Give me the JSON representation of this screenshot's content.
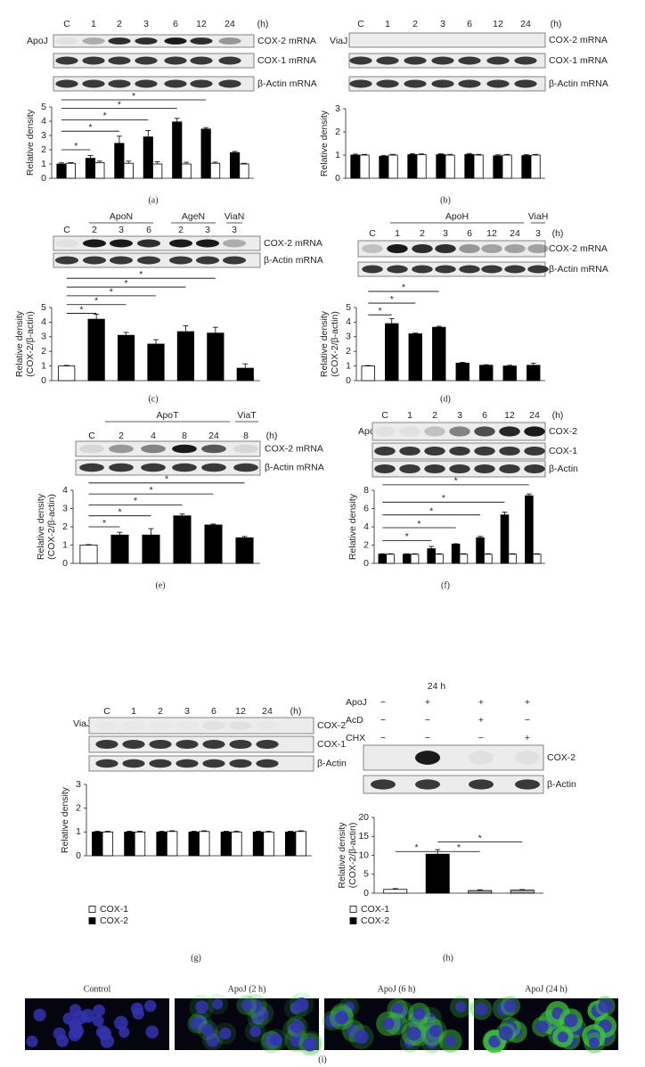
{
  "chart_data": [
    {
      "type": "bar",
      "panel": "(a)",
      "gel_label": "ApoJ",
      "lanes": [
        "C",
        "1",
        "2",
        "3",
        "6",
        "12",
        "24"
      ],
      "unit": "(h)",
      "gel_rows": [
        "COX-2 mRNA",
        "COX-1 mRNA",
        "β-Actin mRNA"
      ],
      "ylabel": [
        "Relative density"
      ],
      "ylim": [
        0,
        5
      ],
      "yticks": [
        0,
        1,
        2,
        3,
        4,
        5
      ],
      "series": [
        {
          "color": "#000000",
          "values": [
            1.0,
            1.4,
            2.45,
            2.9,
            3.95,
            3.45,
            1.8
          ],
          "errors": [
            0.08,
            0.2,
            0.5,
            0.45,
            0.25,
            0.1,
            0.08
          ]
        },
        {
          "color": "#ffffff",
          "values": [
            1.05,
            1.1,
            1.05,
            1.0,
            1.0,
            1.05,
            1.0
          ],
          "errors": [
            0.05,
            0.1,
            0.15,
            0.15,
            0.12,
            0.08,
            0.05
          ]
        }
      ],
      "annotations": [
        "*",
        "*",
        "*",
        "*",
        "*"
      ]
    },
    {
      "type": "bar",
      "panel": "(b)",
      "gel_label": "ViaJ",
      "lanes": [
        "C",
        "1",
        "2",
        "3",
        "6",
        "12",
        "24"
      ],
      "unit": "(h)",
      "gel_rows": [
        "COX-2 mRNA",
        "COX-1 mRNA",
        "β-Actin mRNA"
      ],
      "ylabel": [
        "Relative density"
      ],
      "ylim": [
        0,
        3
      ],
      "yticks": [
        0,
        1,
        2,
        3
      ],
      "series": [
        {
          "color": "#000000",
          "values": [
            1.0,
            0.95,
            1.02,
            1.02,
            1.03,
            0.97,
            0.98
          ],
          "errors": [
            0.04,
            0.04,
            0.04,
            0.04,
            0.04,
            0.04,
            0.04
          ]
        },
        {
          "color": "#ffffff",
          "values": [
            1.0,
            1.0,
            1.02,
            1.0,
            1.0,
            1.0,
            1.0
          ],
          "errors": [
            0.03,
            0.03,
            0.03,
            0.03,
            0.03,
            0.03,
            0.03
          ]
        }
      ],
      "annotations": []
    },
    {
      "type": "bar",
      "panel": "(c)",
      "groups": [
        "ApoN",
        "AgeN",
        "ViaN"
      ],
      "lanes": [
        "C",
        "2",
        "3",
        "6",
        "2",
        "3",
        "3"
      ],
      "gel_rows": [
        "COX-2 mRNA",
        "β-Actin mRNA"
      ],
      "ylabel": [
        "Relative density",
        "(COX-2/β-actin)"
      ],
      "ylim": [
        0,
        5
      ],
      "yticks": [
        0,
        1,
        2,
        3,
        4,
        5
      ],
      "series": [
        {
          "colors": [
            "#ffffff",
            "#000000",
            "#000000",
            "#000000",
            "#000000",
            "#000000",
            "#000000"
          ],
          "values": [
            1.0,
            4.2,
            3.1,
            2.5,
            3.35,
            3.25,
            0.85
          ],
          "errors": [
            0.04,
            0.35,
            0.2,
            0.3,
            0.4,
            0.4,
            0.3
          ]
        }
      ],
      "annotations": [
        "*",
        "*",
        "*",
        "*",
        "*"
      ]
    },
    {
      "type": "bar",
      "panel": "(d)",
      "groups": [
        "ApoH",
        "ViaH"
      ],
      "lanes": [
        "C",
        "1",
        "2",
        "3",
        "6",
        "12",
        "24",
        "3"
      ],
      "unit": "(h)",
      "gel_rows": [
        "COX-2 mRNA",
        "β-Actin mRNA"
      ],
      "ylabel": [
        "Relative density",
        "(COX-2/β-actin)"
      ],
      "ylim": [
        0,
        5
      ],
      "yticks": [
        0,
        1,
        2,
        3,
        4,
        5
      ],
      "series": [
        {
          "colors": [
            "#ffffff",
            "#000000",
            "#000000",
            "#000000",
            "#000000",
            "#000000",
            "#000000",
            "#000000"
          ],
          "values": [
            1.0,
            3.9,
            3.2,
            3.65,
            1.2,
            1.05,
            1.0,
            1.05
          ],
          "errors": [
            0.03,
            0.35,
            0.05,
            0.07,
            0.05,
            0.04,
            0.05,
            0.15
          ]
        }
      ],
      "annotations": [
        "*",
        "*",
        "*"
      ]
    },
    {
      "type": "bar",
      "panel": "(e)",
      "groups": [
        "ApoT",
        "ViaT"
      ],
      "lanes": [
        "C",
        "2",
        "4",
        "8",
        "24",
        "8"
      ],
      "unit": "(h)",
      "gel_rows": [
        "COX-2 mRNA",
        "β-Actin mRNA"
      ],
      "ylabel": [
        "Relative density",
        "(COX-2/β-actin)"
      ],
      "ylim": [
        0,
        4
      ],
      "yticks": [
        0,
        1,
        2,
        3,
        4
      ],
      "series": [
        {
          "colors": [
            "#ffffff",
            "#000000",
            "#000000",
            "#000000",
            "#000000",
            "#000000"
          ],
          "values": [
            1.0,
            1.55,
            1.55,
            2.6,
            2.1,
            1.4
          ],
          "errors": [
            0.03,
            0.15,
            0.35,
            0.1,
            0.05,
            0.07
          ]
        }
      ],
      "annotations": [
        "*",
        "*",
        "*",
        "*",
        "*"
      ]
    },
    {
      "type": "bar",
      "panel": "(f)",
      "gel_label": "ApoJ",
      "lanes": [
        "C",
        "1",
        "2",
        "3",
        "6",
        "12",
        "24"
      ],
      "unit": "(h)",
      "gel_rows": [
        "COX-2",
        "COX-1",
        "β-Actin"
      ],
      "ylabel": [
        "Relative density"
      ],
      "ylim": [
        0,
        8
      ],
      "yticks": [
        0,
        2,
        4,
        6,
        8
      ],
      "series": [
        {
          "color": "#000000",
          "values": [
            1.0,
            1.0,
            1.6,
            2.1,
            2.8,
            5.3,
            7.4
          ],
          "errors": [
            0.05,
            0.05,
            0.25,
            0.05,
            0.15,
            0.3,
            0.2
          ]
        },
        {
          "color": "#ffffff",
          "values": [
            1.0,
            1.0,
            1.0,
            1.0,
            1.0,
            1.0,
            1.0
          ],
          "errors": [
            0.05,
            0.05,
            0.05,
            0.05,
            0.05,
            0.05,
            0.05
          ]
        }
      ],
      "annotations": [
        "*",
        "*",
        "*",
        "*",
        "*"
      ]
    },
    {
      "type": "bar",
      "panel": "(g)",
      "gel_label": "ViaJ",
      "lanes": [
        "C",
        "1",
        "2",
        "3",
        "6",
        "12",
        "24"
      ],
      "unit": "(h)",
      "gel_rows": [
        "COX-2",
        "COX-1",
        "β-Actin"
      ],
      "ylabel": [
        "Relative density"
      ],
      "ylim": [
        0,
        3
      ],
      "yticks": [
        0,
        1,
        2,
        3
      ],
      "series": [
        {
          "color": "#000000",
          "values": [
            1.0,
            1.0,
            1.0,
            1.0,
            1.0,
            1.0,
            1.0
          ],
          "errors": [
            0.03,
            0.03,
            0.03,
            0.03,
            0.03,
            0.03,
            0.03
          ]
        },
        {
          "color": "#ffffff",
          "values": [
            1.0,
            1.0,
            1.02,
            1.02,
            1.0,
            1.0,
            1.02
          ],
          "errors": [
            0.03,
            0.03,
            0.03,
            0.03,
            0.03,
            0.03,
            0.03
          ]
        }
      ],
      "legend": [
        {
          "name": "COX-1",
          "color": "#ffffff"
        },
        {
          "name": "COX-2",
          "color": "#000000"
        }
      ],
      "annotations": []
    },
    {
      "type": "bar",
      "panel": "(h)",
      "header": "24 h",
      "conditions": [
        {
          "label": "ApoJ",
          "signs": [
            "−",
            "+",
            "+",
            "+"
          ]
        },
        {
          "label": "AcD",
          "signs": [
            "−",
            "−",
            "+",
            "−"
          ]
        },
        {
          "label": "CHX",
          "signs": [
            "−",
            "−",
            "−",
            "+"
          ]
        }
      ],
      "gel_rows": [
        "COX-2",
        "β-Actin"
      ],
      "ylabel": [
        "Relative density",
        "(COX-2/β-actin)"
      ],
      "ylim": [
        0,
        20
      ],
      "yticks": [
        0,
        5,
        10,
        15,
        20
      ],
      "series": [
        {
          "colors": [
            "#ffffff",
            "#000000",
            "#aaaaaa",
            "#aaaaaa"
          ],
          "values": [
            1.0,
            10.3,
            0.7,
            0.8
          ],
          "errors": [
            0.2,
            1.2,
            0.2,
            0.15
          ]
        }
      ],
      "legend": [
        {
          "name": "COX-1",
          "color": "#ffffff"
        },
        {
          "name": "COX-2",
          "color": "#000000"
        }
      ],
      "annotations": [
        "*",
        "*",
        "*"
      ]
    }
  ],
  "micro": {
    "labels": [
      "Control",
      "ApoJ (2 h)",
      "ApoJ (6 h)",
      "ApoJ (24 h)"
    ],
    "caption": "(i)"
  }
}
